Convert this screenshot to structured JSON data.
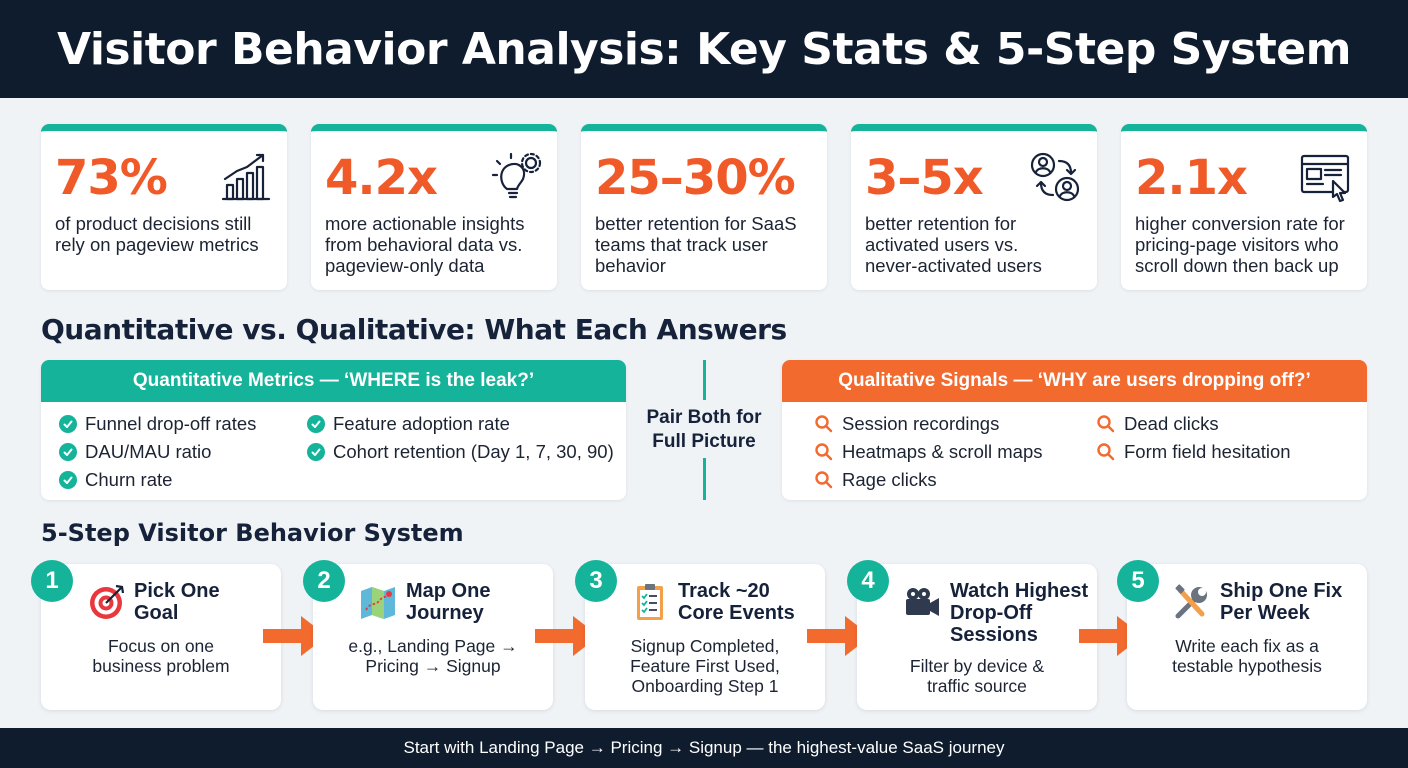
{
  "header": {
    "title": "Visitor Behavior Analysis: Key Stats & 5-Step System"
  },
  "stats": [
    {
      "value": "73%",
      "desc_lines": [
        "of product decisions still",
        "rely on pageview metrics"
      ],
      "icon": "bar-chart-icon"
    },
    {
      "value": "4.2x",
      "desc_lines": [
        "more actionable insights",
        "from behavioral data vs.",
        "pageview-only data"
      ],
      "icon": "lightbulb-gear-icon"
    },
    {
      "value": "25–30%",
      "desc_lines": [
        "better retention for SaaS",
        "teams that track user",
        "behavior"
      ],
      "icon": ""
    },
    {
      "value": "3–5x",
      "desc_lines": [
        "better retention for",
        "activated users vs.",
        "never-activated users"
      ],
      "icon": "user-switch-icon"
    },
    {
      "value": "2.1x",
      "desc_lines": [
        "higher conversion rate for",
        "pricing-page visitors who",
        "scroll down then back up"
      ],
      "icon": "browser-click-icon"
    }
  ],
  "compare": {
    "title": "Quantitative vs. Qualitative: What Each Answers",
    "quant": {
      "heading": "Quantitative Metrics — ‘WHERE is the leak?’",
      "items": [
        "Funnel drop-off rates",
        "DAU/MAU ratio",
        "Churn rate",
        "Feature adoption rate",
        "Cohort retention (Day 1, 7, 30, 90)"
      ]
    },
    "pair_lines": [
      "Pair Both for",
      "Full Picture"
    ],
    "qual": {
      "heading": "Qualitative Signals — ‘WHY are users dropping off?’",
      "items": [
        "Session recordings",
        "Heatmaps & scroll maps",
        "Rage clicks",
        "Dead clicks",
        "Form field hesitation"
      ]
    }
  },
  "system": {
    "title": "5-Step Visitor Behavior System",
    "steps": [
      {
        "num": "1",
        "title_lines": [
          "Pick One",
          "Goal"
        ],
        "desc_lines": [
          "Focus on one",
          "business problem"
        ],
        "icon": "target-icon"
      },
      {
        "num": "2",
        "title_lines": [
          "Map One",
          "Journey"
        ],
        "desc_lines": [
          "e.g., Landing Page →",
          "Pricing → Signup"
        ],
        "icon": "map-icon"
      },
      {
        "num": "3",
        "title_lines": [
          "Track ~20",
          "Core Events"
        ],
        "desc_lines": [
          "Signup Completed,",
          "Feature First Used,",
          "Onboarding Step 1"
        ],
        "icon": "clipboard-icon"
      },
      {
        "num": "4",
        "title_lines": [
          "Watch Highest",
          "Drop-Off",
          "Sessions"
        ],
        "desc_lines": [
          "Filter by device &",
          "traffic source"
        ],
        "icon": "video-camera-icon"
      },
      {
        "num": "5",
        "title_lines": [
          "Ship One Fix",
          "Per Week"
        ],
        "desc_lines": [
          "Write each fix as a",
          "testable hypothesis"
        ],
        "icon": "wrench-icon"
      }
    ]
  },
  "footer": {
    "text": "Start with Landing Page → Pricing → Signup — the highest-value SaaS journey"
  },
  "colors": {
    "teal": "#14b39a",
    "orange": "#f05a28",
    "navy": "#0f1c2e"
  }
}
